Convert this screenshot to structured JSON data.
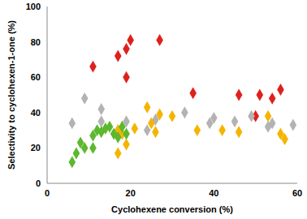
{
  "chart_data": {
    "type": "scatter",
    "x_label": "Cyclohexene conversion (%)",
    "y_label": "Selectivity to cyclohexen-1-one (%)",
    "xlim": [
      0,
      60
    ],
    "xticks": [
      0,
      20,
      40,
      60
    ],
    "ylim": [
      0,
      100
    ],
    "yticks": [
      0,
      20,
      40,
      60,
      80,
      100
    ],
    "grid": false,
    "series": [
      {
        "color": "#e0201c",
        "marker": "diamond",
        "x": [
          11,
          17,
          19,
          20,
          19,
          27,
          35,
          46,
          50,
          51,
          54,
          56
        ],
        "values": [
          66,
          72,
          76,
          81,
          60,
          81,
          51,
          50,
          38,
          50,
          48,
          53
        ]
      },
      {
        "color": "#b3b3b3",
        "marker": "diamond",
        "x": [
          6,
          9,
          13,
          13,
          17,
          19,
          24,
          26,
          33,
          39,
          40,
          45,
          49,
          53,
          54,
          59
        ],
        "values": [
          34,
          48,
          42,
          35,
          30,
          35,
          30,
          36,
          40,
          34,
          37,
          35,
          38,
          32,
          34,
          33
        ]
      },
      {
        "color": "#f5b400",
        "marker": "diamond",
        "x": [
          17,
          17,
          18,
          19,
          21,
          24,
          25,
          26,
          27,
          30,
          36,
          42,
          46,
          53,
          56,
          57
        ],
        "values": [
          17,
          30,
          28,
          22,
          31,
          43,
          34,
          29,
          39,
          38,
          30,
          30,
          29,
          38,
          28,
          25
        ]
      },
      {
        "color": "#5cb82e",
        "marker": "diamond",
        "x": [
          6,
          7,
          8,
          9,
          11,
          11,
          12,
          13,
          14,
          15,
          16,
          17,
          18,
          19
        ],
        "values": [
          12,
          17,
          23,
          20,
          20,
          27,
          30,
          29,
          31,
          32,
          28,
          26,
          32,
          28
        ]
      }
    ]
  }
}
